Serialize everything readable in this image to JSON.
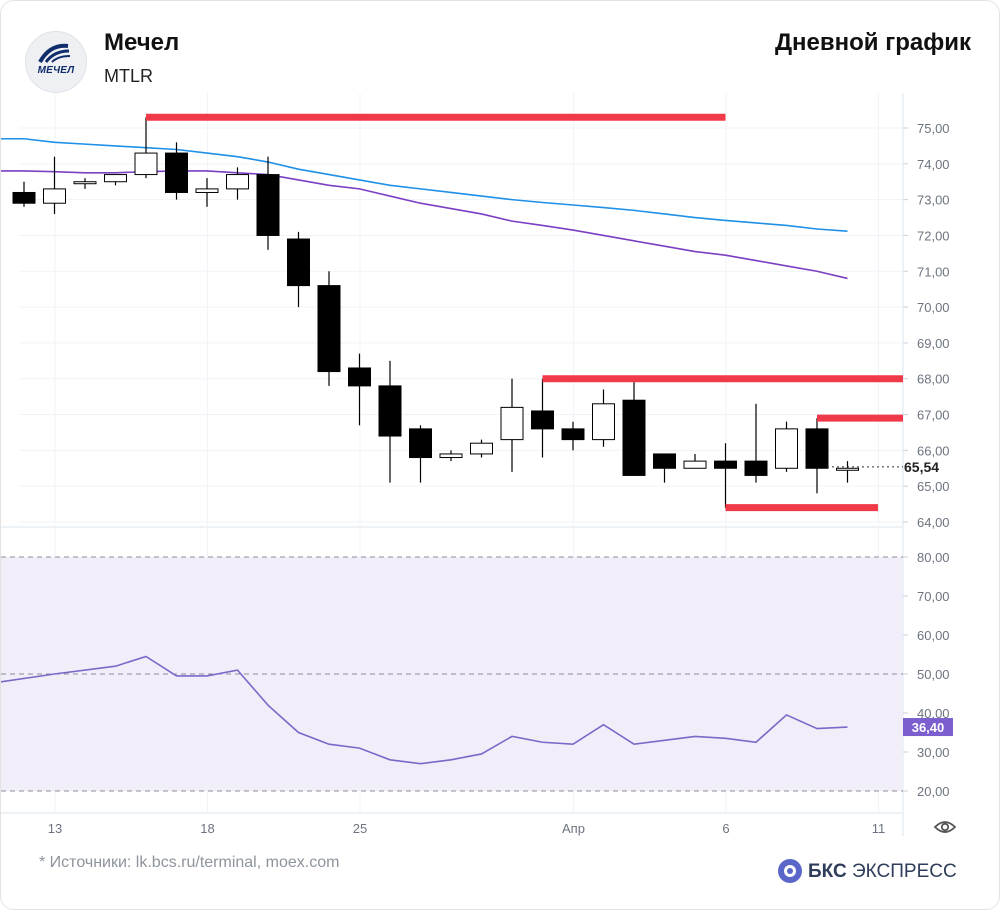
{
  "header": {
    "company": "Мечел",
    "ticker": "MTLR",
    "chart_kind": "Дневной график",
    "logo_text": "МЕЧЕЛ"
  },
  "footer": {
    "sources": "* Источники: lk.bcs.ru/terminal, moex.com",
    "brand_bold": "БКС",
    "brand_rest": " ЭКСПРЕСС"
  },
  "colors": {
    "up_candle_fill": "#ffffff",
    "down_candle_fill": "#000000",
    "level_line": "#f03a4a",
    "ma_fast": "#7b3fc4",
    "ma_slow": "#1e90e8",
    "rsi_line": "#7b68c8",
    "rsi_band": "#f1eefa",
    "current_rsi_badge": "#7b5fcf"
  },
  "chart_data": [
    {
      "type": "candlestick",
      "title": "",
      "ylim": [
        63.8,
        75.8
      ],
      "y_ticks": [
        "64,00",
        "65,00",
        "66,00",
        "67,00",
        "68,00",
        "69,00",
        "70,00",
        "71,00",
        "72,00",
        "73,00",
        "74,00",
        "75,00"
      ],
      "x_tick_labels": [
        "13",
        "18",
        "25",
        "Апр",
        "6",
        "11"
      ],
      "current_price_label": "65,54",
      "candles": [
        {
          "x": 0,
          "o": 73.2,
          "h": 73.5,
          "l": 72.8,
          "c": 72.9
        },
        {
          "x": 1,
          "o": 72.9,
          "h": 74.2,
          "l": 72.6,
          "c": 73.3
        },
        {
          "x": 2,
          "o": 73.5,
          "h": 73.6,
          "l": 73.3,
          "c": 73.5
        },
        {
          "x": 3,
          "o": 73.5,
          "h": 73.7,
          "l": 73.4,
          "c": 73.7
        },
        {
          "x": 4,
          "o": 73.7,
          "h": 75.3,
          "l": 73.6,
          "c": 74.3
        },
        {
          "x": 5,
          "o": 74.3,
          "h": 74.6,
          "l": 73.0,
          "c": 73.2
        },
        {
          "x": 6,
          "o": 73.2,
          "h": 73.6,
          "l": 72.8,
          "c": 73.3
        },
        {
          "x": 7,
          "o": 73.3,
          "h": 73.9,
          "l": 73.0,
          "c": 73.7
        },
        {
          "x": 8,
          "o": 73.7,
          "h": 74.2,
          "l": 71.6,
          "c": 72.0
        },
        {
          "x": 9,
          "o": 71.9,
          "h": 72.1,
          "l": 70.0,
          "c": 70.6
        },
        {
          "x": 10,
          "o": 70.6,
          "h": 71.0,
          "l": 67.8,
          "c": 68.2
        },
        {
          "x": 11,
          "o": 68.3,
          "h": 68.7,
          "l": 66.7,
          "c": 67.8
        },
        {
          "x": 12,
          "o": 67.8,
          "h": 68.5,
          "l": 65.1,
          "c": 66.4
        },
        {
          "x": 13,
          "o": 66.6,
          "h": 66.7,
          "l": 65.1,
          "c": 65.8
        },
        {
          "x": 14,
          "o": 65.8,
          "h": 66.0,
          "l": 65.7,
          "c": 65.9
        },
        {
          "x": 15,
          "o": 65.9,
          "h": 66.3,
          "l": 65.8,
          "c": 66.2
        },
        {
          "x": 16,
          "o": 66.3,
          "h": 68.0,
          "l": 65.4,
          "c": 67.2
        },
        {
          "x": 17,
          "o": 67.1,
          "h": 68.0,
          "l": 65.8,
          "c": 66.6
        },
        {
          "x": 18,
          "o": 66.6,
          "h": 66.8,
          "l": 66.0,
          "c": 66.3
        },
        {
          "x": 19,
          "o": 66.3,
          "h": 67.7,
          "l": 66.1,
          "c": 67.3
        },
        {
          "x": 20,
          "o": 67.4,
          "h": 68.0,
          "l": 65.3,
          "c": 65.3
        },
        {
          "x": 21,
          "o": 65.9,
          "h": 65.9,
          "l": 65.1,
          "c": 65.5
        },
        {
          "x": 22,
          "o": 65.5,
          "h": 65.9,
          "l": 65.5,
          "c": 65.7
        },
        {
          "x": 23,
          "o": 65.7,
          "h": 66.2,
          "l": 64.4,
          "c": 65.5
        },
        {
          "x": 24,
          "o": 65.7,
          "h": 67.3,
          "l": 65.1,
          "c": 65.3
        },
        {
          "x": 25,
          "o": 65.5,
          "h": 66.8,
          "l": 65.4,
          "c": 66.6
        },
        {
          "x": 26,
          "o": 66.6,
          "h": 66.9,
          "l": 64.8,
          "c": 65.5
        },
        {
          "x": 27,
          "o": 65.5,
          "h": 65.7,
          "l": 65.1,
          "c": 65.5
        }
      ],
      "moving_averages": [
        {
          "color": "ma_slow",
          "values": [
            74.7,
            74.6,
            74.55,
            74.5,
            74.45,
            74.4,
            74.3,
            74.2,
            74.05,
            73.85,
            73.7,
            73.55,
            73.4,
            73.3,
            73.2,
            73.1,
            73.0,
            72.92,
            72.85,
            72.78,
            72.7,
            72.6,
            72.5,
            72.42,
            72.35,
            72.28,
            72.18,
            72.12
          ]
        },
        {
          "color": "ma_fast",
          "values": [
            73.8,
            73.78,
            73.75,
            73.75,
            73.78,
            73.8,
            73.8,
            73.75,
            73.7,
            73.55,
            73.4,
            73.3,
            73.1,
            72.9,
            72.75,
            72.6,
            72.4,
            72.28,
            72.15,
            72.0,
            71.85,
            71.7,
            71.55,
            71.45,
            71.3,
            71.15,
            71.0,
            70.8
          ]
        }
      ],
      "levels": [
        {
          "y": 75.3,
          "x_from": 4,
          "x_to": 23
        },
        {
          "y": 68.0,
          "x_from": 17,
          "x_to": 29
        },
        {
          "y": 66.9,
          "x_from": 26,
          "x_to": 29
        },
        {
          "y": 64.4,
          "x_from": 23,
          "x_to": 28
        }
      ]
    },
    {
      "type": "line",
      "title": "",
      "ylim": [
        18,
        82
      ],
      "y_ticks": [
        "20,00",
        "30,00",
        "40,00",
        "50,00",
        "60,00",
        "70,00",
        "80,00"
      ],
      "band": [
        20,
        80
      ],
      "dashed_levels": [
        20,
        50,
        80
      ],
      "current_value_label": "36,40",
      "x": [
        -0.1,
        1,
        3,
        4,
        5,
        6,
        7,
        8,
        9,
        10,
        11,
        12,
        13,
        14,
        15,
        16,
        17,
        18,
        19,
        20,
        21,
        22,
        23,
        24,
        25,
        26,
        27
      ],
      "values": [
        48,
        50,
        52,
        54.5,
        49.5,
        49.5,
        51,
        42,
        35,
        32,
        31,
        28,
        27,
        28,
        29.5,
        34,
        32.5,
        32,
        37,
        32,
        33,
        34,
        33.5,
        32.5,
        39.5,
        36,
        36.4
      ]
    }
  ]
}
